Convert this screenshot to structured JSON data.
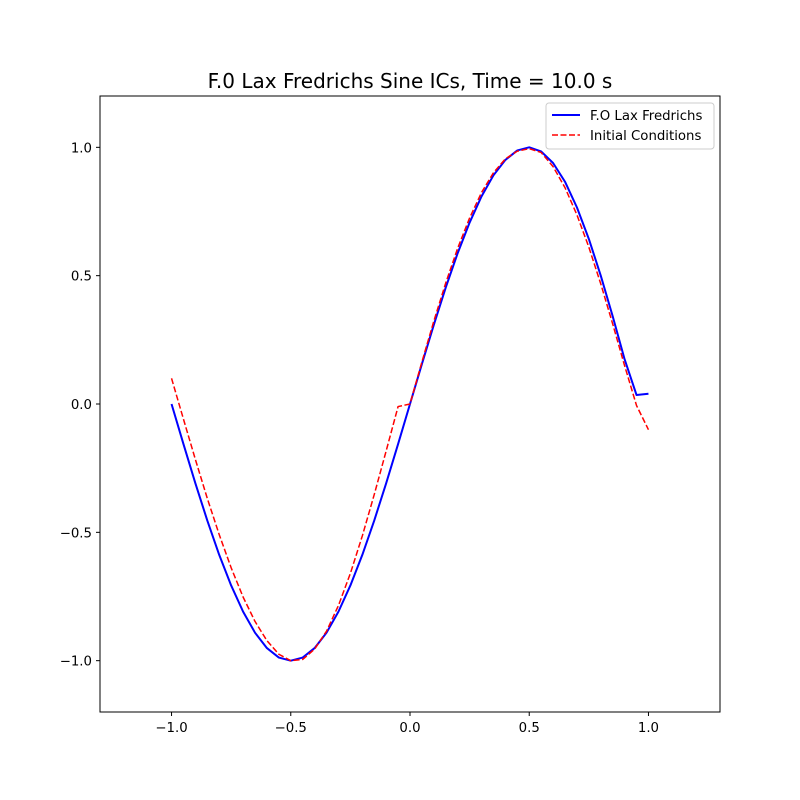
{
  "chart_data": {
    "type": "line",
    "title": "F.0 Lax Fredrichs Sine ICs, Time = 10.0 s",
    "xlabel": "",
    "ylabel": "",
    "xlim": [
      -1.3,
      1.3
    ],
    "ylim": [
      -1.2,
      1.2
    ],
    "x_ticks": [
      -1.0,
      -0.5,
      0.0,
      0.5,
      1.0
    ],
    "x_tick_labels": [
      "−1.0",
      "−0.5",
      "0.0",
      "0.5",
      "1.0"
    ],
    "y_ticks": [
      -1.0,
      -0.5,
      0.0,
      0.5,
      1.0
    ],
    "y_tick_labels": [
      "−1.0",
      "−0.5",
      "0.0",
      "0.5",
      "1.0"
    ],
    "grid": false,
    "legend_position": "top-right",
    "series": [
      {
        "name": "F.O Lax Fredrichs",
        "color": "#0000ff",
        "style": "solid",
        "x": [
          -1.0,
          -0.95,
          -0.9,
          -0.85,
          -0.8,
          -0.75,
          -0.7,
          -0.65,
          -0.6,
          -0.55,
          -0.5,
          -0.45,
          -0.4,
          -0.35,
          -0.3,
          -0.25,
          -0.2,
          -0.15,
          -0.1,
          -0.05,
          0.0,
          0.05,
          0.1,
          0.15,
          0.2,
          0.25,
          0.3,
          0.35,
          0.4,
          0.45,
          0.5,
          0.55,
          0.6,
          0.65,
          0.7,
          0.75,
          0.8,
          0.85,
          0.9,
          0.95,
          1.0
        ],
        "y": [
          0.0,
          -0.156,
          -0.309,
          -0.454,
          -0.588,
          -0.707,
          -0.809,
          -0.891,
          -0.951,
          -0.988,
          -1.0,
          -0.988,
          -0.951,
          -0.891,
          -0.809,
          -0.707,
          -0.588,
          -0.454,
          -0.309,
          -0.156,
          0.0,
          0.156,
          0.309,
          0.454,
          0.588,
          0.707,
          0.809,
          0.891,
          0.951,
          0.988,
          1.0,
          0.984,
          0.939,
          0.866,
          0.766,
          0.643,
          0.5,
          0.342,
          0.174,
          0.035,
          0.04
        ]
      },
      {
        "name": "Initial Conditions",
        "color": "#ff0000",
        "style": "dashed",
        "x": [
          -1.0,
          -0.95,
          -0.9,
          -0.85,
          -0.8,
          -0.75,
          -0.7,
          -0.65,
          -0.6,
          -0.55,
          -0.5,
          -0.45,
          -0.4,
          -0.35,
          -0.3,
          -0.25,
          -0.2,
          -0.15,
          -0.1,
          -0.05,
          0.0,
          0.05,
          0.1,
          0.15,
          0.2,
          0.25,
          0.3,
          0.35,
          0.4,
          0.45,
          0.5,
          0.55,
          0.6,
          0.65,
          0.7,
          0.75,
          0.8,
          0.85,
          0.9,
          0.95,
          1.0
        ],
        "y": [
          0.1,
          -0.059,
          -0.216,
          -0.368,
          -0.509,
          -0.638,
          -0.752,
          -0.847,
          -0.922,
          -0.975,
          -1.0,
          -0.995,
          -0.955,
          -0.885,
          -0.785,
          -0.66,
          -0.514,
          -0.353,
          -0.183,
          -0.01,
          0.0,
          0.164,
          0.323,
          0.472,
          0.607,
          0.725,
          0.824,
          0.901,
          0.955,
          0.985,
          0.995,
          0.98,
          0.925,
          0.843,
          0.737,
          0.611,
          0.468,
          0.312,
          0.149,
          -0.006,
          -0.1
        ]
      }
    ]
  }
}
